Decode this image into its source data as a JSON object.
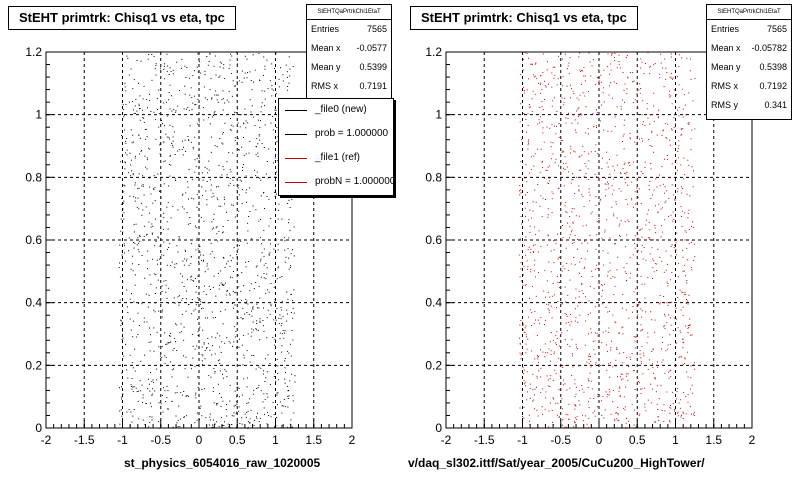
{
  "colors": {
    "series_new": "#000000",
    "series_ref": "#cc0000",
    "grid": "#000000",
    "background": "#ffffff"
  },
  "panels": [
    {
      "title": "StEHT primtrk: Chisq1 vs eta, tpc",
      "stats": {
        "name": "StEHTQaPrtrkChi1EtaT",
        "rows": [
          {
            "label": "Entries",
            "value": "7565"
          },
          {
            "label": "Mean x",
            "value": "-0.0577"
          },
          {
            "label": "Mean y",
            "value": "0.5399"
          },
          {
            "label": "RMS x",
            "value": "0.7191"
          }
        ]
      },
      "legend": {
        "entries": [
          {
            "label": "_file0 (new)",
            "color": "#000000"
          },
          {
            "label": "prob = 1.000000",
            "color": "#000000"
          },
          {
            "label": "_file1 (ref)",
            "color": "#cc0000"
          },
          {
            "label": "probN = 1.000000",
            "color": "#cc0000"
          }
        ]
      },
      "footer_label": "st_physics_6054016_raw_1020005"
    },
    {
      "title": "StEHT primtrk: Chisq1 vs eta, tpc",
      "stats": {
        "name": "StEHTQaPrtrkChi1EtaT",
        "rows": [
          {
            "label": "Entries",
            "value": "7565"
          },
          {
            "label": "Mean x",
            "value": "-0.05782"
          },
          {
            "label": "Mean y",
            "value": "0.5398"
          },
          {
            "label": "RMS x",
            "value": "0.7192"
          },
          {
            "label": "RMS y",
            "value": "0.341"
          }
        ]
      },
      "footer_label": "v/daq_sl302.ittf/Sat/year_2005/CuCu200_HighTower/"
    }
  ],
  "chart_data": [
    {
      "type": "scatter",
      "title": "StEHT primtrk: Chisq1 vs eta, tpc",
      "xlim": [
        -2,
        2
      ],
      "ylim": [
        0,
        1.2
      ],
      "xticks": [
        -2,
        -1.5,
        -1,
        -0.5,
        0,
        0.5,
        1,
        1.5,
        2
      ],
      "yticks": [
        0,
        0.2,
        0.4,
        0.6,
        0.8,
        1,
        1.2
      ],
      "xtick_labels": [
        "-2",
        "-1.5",
        "-1",
        "-0.5",
        "0",
        "0.5",
        "1",
        "1.5",
        "2"
      ],
      "ytick_labels": [
        "0",
        "0.2",
        "0.4",
        "0.6",
        "0.8",
        "1",
        "1.2"
      ],
      "grid": true,
      "series": [
        {
          "name": "_file0 (new)",
          "color": "#000000",
          "entries": 7565,
          "mean_x": -0.0577,
          "mean_y": 0.5399,
          "rms_x": 0.7191,
          "x_range": [
            -1.05,
            1.25
          ],
          "y_range": [
            0,
            1.2
          ]
        }
      ]
    },
    {
      "type": "scatter",
      "title": "StEHT primtrk: Chisq1 vs eta, tpc",
      "xlim": [
        -2,
        2
      ],
      "ylim": [
        0,
        1.2
      ],
      "xticks": [
        -2,
        -1.5,
        -1,
        -0.5,
        0,
        0.5,
        1,
        1.5,
        2
      ],
      "yticks": [
        0,
        0.2,
        0.4,
        0.6,
        0.8,
        1,
        1.2
      ],
      "xtick_labels": [
        "-2",
        "-1.5",
        "-1",
        "-0.5",
        "0",
        "0.5",
        "1",
        "1.5",
        "2"
      ],
      "ytick_labels": [
        "0",
        "0.2",
        "0.4",
        "0.6",
        "0.8",
        "1",
        "1.2"
      ],
      "grid": true,
      "series": [
        {
          "name": "_file1 (ref)",
          "color": "#cc0000",
          "entries": 7565,
          "mean_x": -0.05782,
          "mean_y": 0.5398,
          "rms_x": 0.7192,
          "rms_y": 0.341,
          "x_range": [
            -1.05,
            1.25
          ],
          "y_range": [
            0,
            1.2
          ]
        }
      ]
    }
  ]
}
